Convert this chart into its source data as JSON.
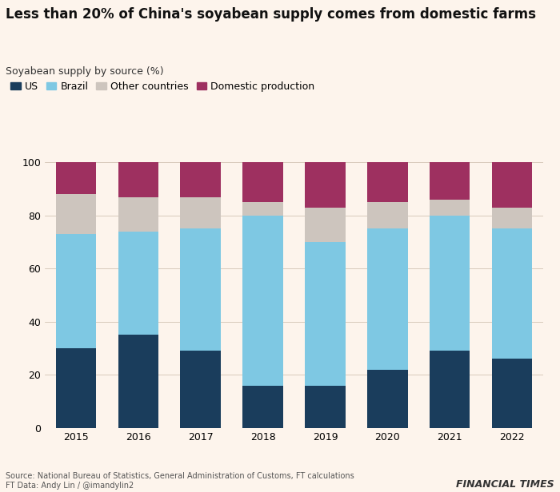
{
  "years": [
    "2015",
    "2016",
    "2017",
    "2018",
    "2019",
    "2020",
    "2021",
    "2022"
  ],
  "us": [
    30,
    35,
    29,
    16,
    16,
    22,
    29,
    26
  ],
  "brazil": [
    43,
    39,
    46,
    64,
    54,
    53,
    51,
    49
  ],
  "other_countries": [
    15,
    13,
    12,
    5,
    13,
    10,
    6,
    8
  ],
  "domestic_production": [
    12,
    13,
    13,
    15,
    17,
    15,
    14,
    17
  ],
  "colors": {
    "us": "#1a3d5c",
    "brazil": "#7ec8e3",
    "other_countries": "#cdc5be",
    "domestic_production": "#9e3060"
  },
  "title": "Less than 20% of China's soyabean supply comes from domestic farms",
  "subtitle": "Soyabean supply by source (%)",
  "legend_labels": [
    "US",
    "Brazil",
    "Other countries",
    "Domestic production"
  ],
  "ylim": [
    0,
    100
  ],
  "yticks": [
    0,
    20,
    40,
    60,
    80,
    100
  ],
  "source": "Source: National Bureau of Statistics, General Administration of Customs, FT calculations\nFT Data: Andy Lin / @imandylin2",
  "ft_logo": "FINANCIAL TIMES",
  "background_color": "#fdf4ec",
  "title_fontsize": 12,
  "subtitle_fontsize": 9,
  "tick_fontsize": 9,
  "legend_fontsize": 9,
  "source_fontsize": 7,
  "ft_logo_fontsize": 9
}
